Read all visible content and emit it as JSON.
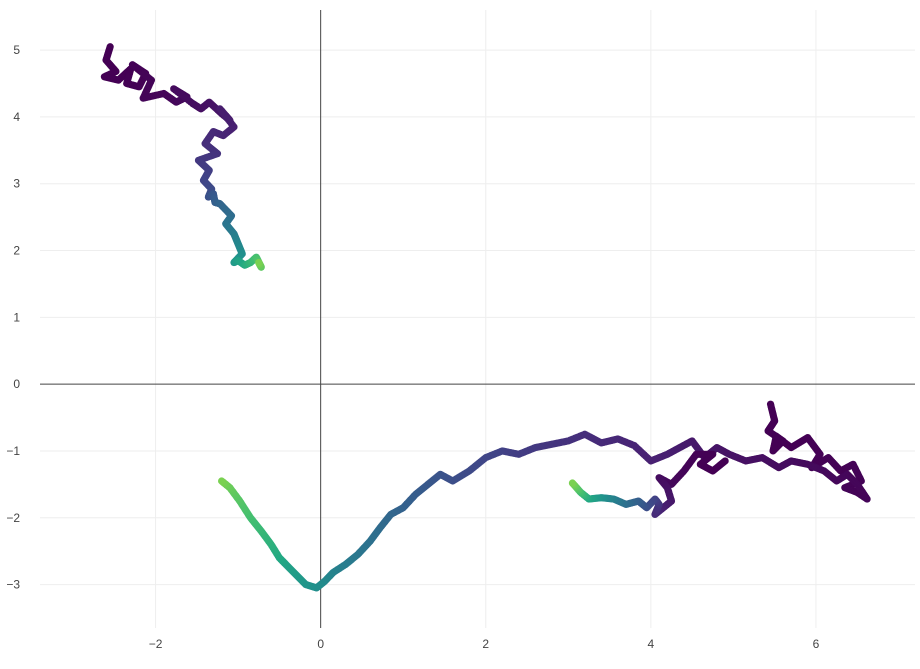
{
  "chart_data": {
    "type": "scatter",
    "title": "",
    "xlabel": "",
    "ylabel": "",
    "xlim": [
      -3.4,
      7.2
    ],
    "ylim": [
      -3.65,
      5.6
    ],
    "grid": true,
    "zero_lines": true,
    "x_ticks": [
      {
        "value": -2,
        "label": "−2"
      },
      {
        "value": 0,
        "label": "0"
      },
      {
        "value": 2,
        "label": "2"
      },
      {
        "value": 4,
        "label": "4"
      },
      {
        "value": 6,
        "label": "6"
      }
    ],
    "y_ticks": [
      {
        "value": 5,
        "label": "5"
      },
      {
        "value": 4,
        "label": "4"
      },
      {
        "value": 3,
        "label": "3"
      },
      {
        "value": 2,
        "label": "2"
      },
      {
        "value": 1,
        "label": "1"
      },
      {
        "value": 0,
        "label": "0"
      },
      {
        "value": -1,
        "label": "−1"
      },
      {
        "value": -2,
        "label": "−2"
      },
      {
        "value": -3,
        "label": "−3"
      }
    ],
    "colorscale": [
      "#440154",
      "#482475",
      "#414487",
      "#355f8d",
      "#2a788e",
      "#21918c",
      "#22a884",
      "#44bf70",
      "#7ad151"
    ],
    "series": [
      {
        "color_order": "start-dark",
        "x": [
          -2.55,
          -2.6,
          -2.48,
          -2.62,
          -2.45,
          -2.3,
          -2.35,
          -2.2,
          -2.12,
          -2.28,
          -2.05,
          -2.15,
          -1.9,
          -1.75,
          -1.62,
          -1.78,
          -1.55,
          -1.45,
          -1.35,
          -1.2,
          -1.1,
          -1.22,
          -1.05,
          -1.18,
          -1.3,
          -1.4,
          -1.25,
          -1.48,
          -1.35,
          -1.42,
          -1.32,
          -1.36,
          -1.3,
          -1.28,
          -1.22,
          -1.08,
          -1.15,
          -1.05,
          -1.0,
          -0.95,
          -1.05,
          -1.0,
          -0.92,
          -0.85,
          -0.78,
          -0.72,
          -0.75
        ],
        "y": [
          5.05,
          4.85,
          4.68,
          4.6,
          4.55,
          4.72,
          4.5,
          4.45,
          4.65,
          4.78,
          4.55,
          4.28,
          4.35,
          4.22,
          4.3,
          4.42,
          4.2,
          4.12,
          4.22,
          4.05,
          3.95,
          4.12,
          3.85,
          3.72,
          3.78,
          3.6,
          3.45,
          3.35,
          3.2,
          3.05,
          2.92,
          2.8,
          2.85,
          2.72,
          2.7,
          2.52,
          2.4,
          2.25,
          2.1,
          1.95,
          1.82,
          1.85,
          1.78,
          1.82,
          1.9,
          1.75,
          1.82
        ]
      },
      {
        "color_order": "start-dark",
        "x": [
          5.45,
          5.5,
          5.42,
          5.6,
          5.48,
          5.52,
          5.7,
          5.9,
          6.05,
          5.95,
          6.15,
          6.3,
          6.45,
          6.55,
          6.35,
          6.5,
          6.62,
          6.5,
          6.38,
          6.25,
          6.1,
          5.9,
          5.7,
          5.55,
          5.35,
          5.15,
          4.95,
          4.8,
          4.65,
          4.5,
          4.35,
          4.2,
          4.0,
          3.8,
          3.6,
          3.4,
          3.2,
          3.0,
          2.8,
          2.6,
          2.4,
          2.2,
          2.0,
          1.8,
          1.6,
          1.45,
          1.3,
          1.15,
          1.0,
          0.85,
          0.72,
          0.6,
          0.45,
          0.3,
          0.15,
          0.05,
          -0.05,
          -0.18,
          -0.3,
          -0.42,
          -0.5,
          -0.6,
          -0.72,
          -0.85,
          -0.98,
          -1.1,
          -1.2
        ],
        "y": [
          -0.3,
          -0.55,
          -0.7,
          -0.85,
          -1.0,
          -0.78,
          -0.95,
          -0.8,
          -1.05,
          -1.25,
          -1.1,
          -1.3,
          -1.2,
          -1.45,
          -1.55,
          -1.62,
          -1.72,
          -1.5,
          -1.35,
          -1.45,
          -1.3,
          -1.2,
          -1.15,
          -1.25,
          -1.1,
          -1.15,
          -1.05,
          -0.95,
          -1.1,
          -0.85,
          -0.95,
          -1.05,
          -1.15,
          -0.92,
          -0.82,
          -0.88,
          -0.75,
          -0.85,
          -0.9,
          -0.95,
          -1.05,
          -1.0,
          -1.1,
          -1.3,
          -1.45,
          -1.35,
          -1.5,
          -1.65,
          -1.85,
          -1.95,
          -2.15,
          -2.35,
          -2.55,
          -2.7,
          -2.82,
          -2.95,
          -3.05,
          -3.0,
          -2.85,
          -2.7,
          -2.6,
          -2.4,
          -2.2,
          -2.0,
          -1.75,
          -1.55,
          -1.45
        ]
      },
      {
        "color_order": "start-dark",
        "x": [
          4.9,
          4.75,
          4.6,
          4.75,
          4.55,
          4.4,
          4.25,
          4.1,
          4.2,
          4.25,
          4.15,
          4.05,
          4.1,
          4.05,
          3.95,
          3.85,
          3.7,
          3.55,
          3.4,
          3.25,
          3.15,
          3.05
        ],
        "y": [
          -1.15,
          -1.3,
          -1.2,
          -1.05,
          -1.05,
          -1.3,
          -1.5,
          -1.4,
          -1.55,
          -1.75,
          -1.85,
          -1.95,
          -1.8,
          -1.72,
          -1.85,
          -1.75,
          -1.8,
          -1.72,
          -1.7,
          -1.72,
          -1.62,
          -1.48
        ]
      }
    ]
  }
}
